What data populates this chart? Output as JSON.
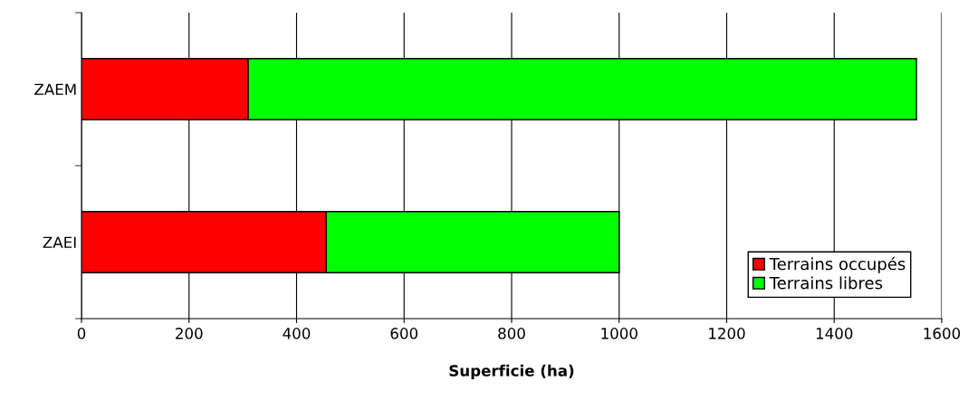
{
  "chart_data": {
    "type": "bar",
    "orientation": "horizontal",
    "stacked": true,
    "categories": [
      "ZAEM",
      "ZAEI"
    ],
    "series": [
      {
        "name": "Terrains occupés",
        "color": "#ff0000",
        "values": [
          310,
          455
        ]
      },
      {
        "name": "Terrains libres",
        "color": "#00ff00",
        "values": [
          1243,
          545
        ]
      }
    ],
    "xlabel": "Superficie (ha)",
    "xlim": [
      0,
      1600
    ],
    "xticks": [
      0,
      200,
      400,
      600,
      800,
      1000,
      1200,
      1400,
      1600
    ],
    "grid": "x",
    "legend": "bottom right"
  }
}
